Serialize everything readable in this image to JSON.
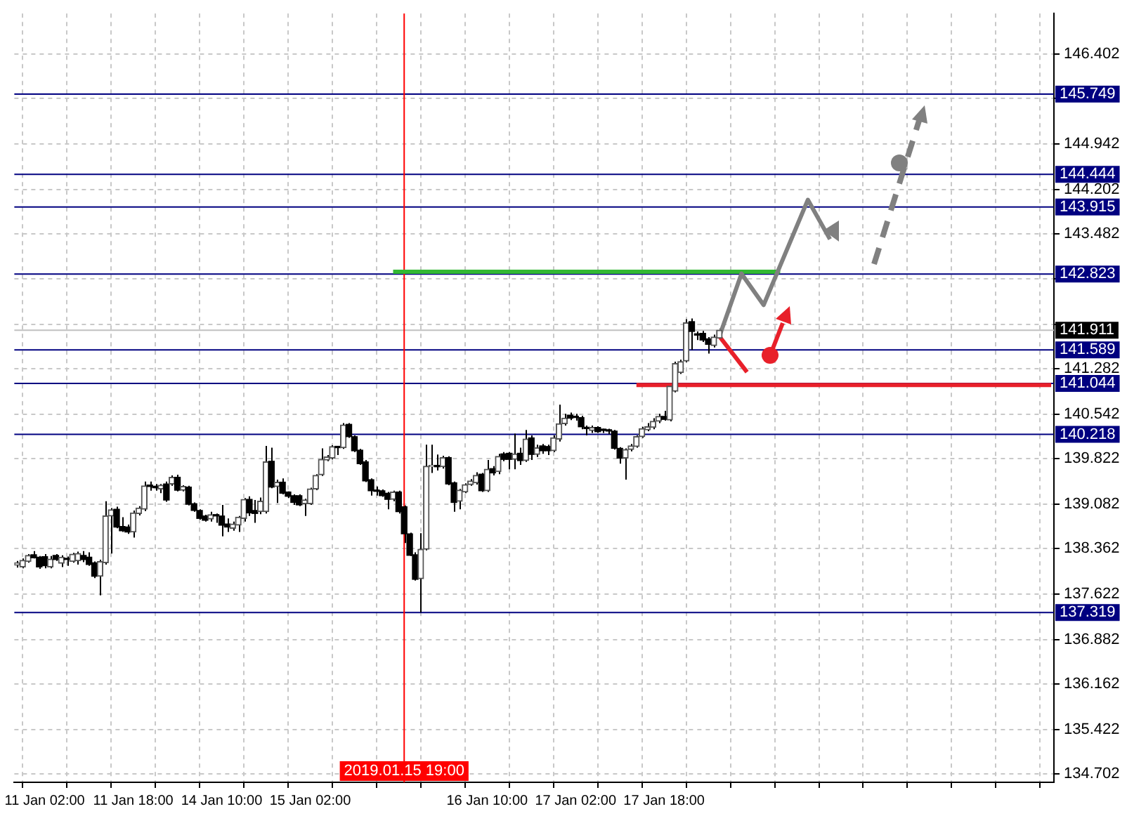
{
  "chart_data": {
    "type": "candlestick",
    "categories": [
      null,
      null,
      null,
      null,
      null,
      "11 Jan 02:00",
      null,
      null,
      null,
      null,
      null,
      null,
      null,
      null,
      null,
      null,
      null,
      null,
      null,
      null,
      null,
      "11 Jan 18:00",
      null,
      null,
      null,
      null,
      null,
      null,
      null,
      null,
      null,
      null,
      null,
      null,
      null,
      null,
      null,
      "14 Jan 10:00",
      null,
      null,
      null,
      null,
      null,
      null,
      null,
      null,
      null,
      null,
      null,
      null,
      null,
      null,
      null,
      "15 Jan 02:00",
      null,
      null,
      null,
      null,
      null,
      null,
      null,
      null,
      null,
      null,
      null,
      null,
      null,
      null,
      null,
      null,
      "2019.01.15 19:00",
      null,
      null,
      null,
      null,
      null,
      null,
      null,
      null,
      null,
      null,
      null,
      null,
      null,
      null,
      "16 Jan 10:00",
      null,
      null,
      null,
      null,
      null,
      null,
      null,
      null,
      null,
      null,
      null,
      null,
      null,
      null,
      null,
      "17 Jan 02:00",
      null,
      null,
      null,
      null,
      null,
      null,
      null,
      null,
      null,
      null,
      null,
      null,
      null,
      null,
      null,
      "17 Jan 18:00",
      null,
      null,
      null,
      null,
      null,
      null,
      null,
      null,
      null,
      null,
      null,
      null,
      null,
      null,
      null,
      null,
      null,
      null,
      null,
      null,
      null,
      null,
      null,
      null,
      null,
      null,
      null,
      null,
      null,
      null,
      null,
      null,
      null,
      null,
      null,
      null,
      null,
      null,
      null,
      null,
      null,
      null,
      null,
      null,
      null,
      null,
      null,
      null,
      null,
      null,
      null,
      null,
      null,
      null,
      null,
      null,
      null,
      null,
      null,
      null,
      null,
      null,
      null,
      null,
      null,
      null,
      null,
      null,
      null,
      null
    ],
    "ohlc": [
      [
        138.09,
        138.16,
        138.05,
        138.13
      ],
      [
        138.06,
        138.2,
        138.04,
        138.17
      ],
      [
        138.15,
        138.27,
        138.13,
        138.25
      ],
      [
        138.26,
        138.32,
        138.2,
        138.21
      ],
      [
        138.22,
        138.24,
        138.03,
        138.06
      ],
      [
        138.23,
        138.27,
        138.04,
        138.08
      ],
      [
        138.06,
        138.24,
        138.04,
        138.19
      ],
      [
        138.25,
        138.27,
        138.16,
        138.18
      ],
      [
        138.12,
        138.25,
        138.06,
        138.22
      ],
      [
        138.18,
        138.23,
        138.08,
        138.18
      ],
      [
        138.15,
        138.29,
        138.13,
        138.27
      ],
      [
        138.16,
        138.31,
        138.1,
        138.28
      ],
      [
        138.25,
        138.32,
        138.14,
        138.18
      ],
      [
        138.22,
        138.3,
        138.08,
        138.1
      ],
      [
        138.13,
        138.15,
        137.88,
        137.91
      ],
      [
        137.91,
        138.18,
        137.6,
        138.15
      ],
      [
        138.13,
        139.13,
        138.1,
        138.89
      ],
      [
        138.89,
        139.02,
        138.28,
        138.99
      ],
      [
        139.0,
        139.04,
        138.69,
        138.71
      ],
      [
        138.72,
        138.87,
        138.63,
        138.65
      ],
      [
        138.71,
        138.75,
        138.6,
        138.63
      ],
      [
        138.63,
        138.98,
        138.54,
        138.94
      ],
      [
        138.93,
        139.05,
        138.9,
        139.02
      ],
      [
        139.0,
        139.45,
        138.97,
        139.38
      ],
      [
        139.38,
        139.45,
        139.3,
        139.37
      ],
      [
        139.36,
        139.41,
        139.3,
        139.35
      ],
      [
        139.33,
        139.41,
        139.26,
        139.39
      ],
      [
        139.41,
        139.45,
        139.12,
        139.15
      ],
      [
        139.41,
        139.55,
        139.38,
        139.52
      ],
      [
        139.52,
        139.56,
        139.29,
        139.31
      ],
      [
        139.31,
        139.39,
        139.29,
        139.37
      ],
      [
        139.36,
        139.38,
        139.06,
        139.08
      ],
      [
        139.09,
        139.11,
        138.96,
        138.98
      ],
      [
        138.98,
        139.0,
        138.83,
        138.85
      ],
      [
        138.89,
        138.91,
        138.8,
        138.82
      ],
      [
        138.84,
        138.96,
        138.8,
        138.91
      ],
      [
        138.89,
        138.93,
        138.78,
        138.89
      ],
      [
        138.89,
        139.07,
        138.56,
        138.74
      ],
      [
        138.76,
        138.85,
        138.63,
        138.71
      ],
      [
        138.69,
        138.8,
        138.65,
        138.76
      ],
      [
        138.74,
        138.89,
        138.63,
        138.87
      ],
      [
        138.85,
        139.18,
        138.8,
        139.16
      ],
      [
        139.16,
        139.21,
        138.89,
        138.94
      ],
      [
        138.98,
        139.15,
        138.78,
        138.93
      ],
      [
        138.96,
        139.19,
        138.92,
        139.13
      ],
      [
        138.96,
        140.03,
        138.93,
        139.77
      ],
      [
        139.78,
        140.0,
        139.34,
        139.36
      ],
      [
        139.37,
        139.48,
        139.1,
        139.44
      ],
      [
        139.44,
        139.5,
        139.24,
        139.26
      ],
      [
        139.28,
        139.29,
        139.18,
        139.21
      ],
      [
        139.22,
        139.24,
        139.07,
        139.11
      ],
      [
        139.22,
        139.24,
        139.05,
        139.07
      ],
      [
        139.09,
        139.17,
        138.89,
        139.15
      ],
      [
        139.09,
        139.35,
        139.07,
        139.33
      ],
      [
        139.33,
        139.57,
        139.31,
        139.55
      ],
      [
        139.56,
        139.99,
        139.54,
        139.81
      ],
      [
        139.8,
        139.88,
        139.78,
        139.85
      ],
      [
        139.83,
        140.04,
        139.81,
        140.02
      ],
      [
        140.0,
        140.03,
        139.88,
        140.0
      ],
      [
        140.0,
        140.4,
        139.98,
        140.37
      ],
      [
        140.38,
        140.4,
        140.16,
        140.18
      ],
      [
        140.18,
        140.2,
        139.93,
        139.95
      ],
      [
        139.96,
        139.98,
        139.72,
        139.74
      ],
      [
        139.77,
        139.8,
        139.44,
        139.46
      ],
      [
        139.48,
        139.5,
        139.22,
        139.3
      ],
      [
        139.3,
        139.37,
        139.22,
        139.29
      ],
      [
        139.3,
        139.32,
        139.2,
        139.22
      ],
      [
        139.26,
        139.28,
        139.0,
        139.16
      ],
      [
        139.16,
        139.3,
        139.13,
        139.28
      ],
      [
        139.28,
        139.3,
        138.93,
        138.96
      ],
      [
        139.04,
        139.06,
        138.45,
        138.6
      ],
      [
        138.6,
        138.62,
        138.24,
        138.25
      ],
      [
        138.26,
        138.3,
        137.84,
        137.86
      ],
      [
        137.87,
        138.61,
        137.32,
        138.35
      ],
      [
        138.35,
        140.05,
        138.33,
        139.7
      ],
      [
        139.69,
        140.05,
        139.59,
        139.7
      ],
      [
        139.69,
        139.89,
        139.63,
        139.69
      ],
      [
        139.69,
        139.87,
        139.66,
        139.84
      ],
      [
        139.84,
        139.86,
        139.39,
        139.41
      ],
      [
        139.43,
        139.45,
        138.96,
        139.11
      ],
      [
        139.13,
        139.33,
        139.0,
        139.31
      ],
      [
        139.28,
        139.42,
        139.26,
        139.4
      ],
      [
        139.4,
        139.49,
        139.38,
        139.46
      ],
      [
        139.43,
        139.6,
        139.4,
        139.55
      ],
      [
        139.57,
        139.59,
        139.28,
        139.3
      ],
      [
        139.3,
        139.8,
        139.28,
        139.65
      ],
      [
        139.66,
        139.7,
        139.55,
        139.59
      ],
      [
        139.61,
        139.9,
        139.57,
        139.86
      ],
      [
        139.9,
        139.93,
        139.78,
        139.81
      ],
      [
        139.91,
        139.93,
        139.65,
        139.81
      ],
      [
        139.81,
        140.23,
        139.65,
        139.9
      ],
      [
        139.91,
        140.0,
        139.72,
        139.79
      ],
      [
        139.79,
        140.29,
        139.77,
        140.14
      ],
      [
        140.16,
        140.2,
        139.8,
        139.89
      ],
      [
        139.89,
        140.05,
        139.85,
        140.0
      ],
      [
        140.03,
        140.06,
        139.9,
        139.95
      ],
      [
        140.02,
        140.05,
        139.88,
        139.95
      ],
      [
        139.95,
        140.2,
        139.93,
        140.16
      ],
      [
        140.14,
        140.7,
        140.1,
        140.39
      ],
      [
        140.39,
        140.55,
        140.36,
        140.48
      ],
      [
        140.53,
        140.57,
        140.45,
        140.48
      ],
      [
        140.49,
        140.55,
        140.44,
        140.49
      ],
      [
        140.49,
        140.52,
        140.3,
        140.34
      ],
      [
        140.31,
        140.36,
        140.2,
        140.31
      ],
      [
        140.28,
        140.36,
        140.24,
        140.33
      ],
      [
        140.33,
        140.35,
        140.24,
        140.26
      ],
      [
        140.28,
        140.31,
        140.24,
        140.28
      ],
      [
        140.28,
        140.31,
        140.22,
        140.27
      ],
      [
        140.27,
        140.29,
        139.97,
        139.99
      ],
      [
        139.99,
        140.01,
        139.74,
        139.83
      ],
      [
        139.83,
        139.99,
        139.48,
        139.97
      ],
      [
        139.97,
        140.06,
        139.94,
        140.03
      ],
      [
        140.02,
        140.2,
        140.0,
        140.18
      ],
      [
        140.18,
        140.34,
        140.16,
        140.31
      ],
      [
        140.29,
        140.4,
        140.27,
        140.34
      ],
      [
        140.33,
        140.48,
        140.3,
        140.43
      ],
      [
        140.43,
        140.55,
        140.4,
        140.51
      ],
      [
        140.51,
        140.6,
        140.44,
        140.46
      ],
      [
        140.45,
        141.05,
        140.43,
        141.0
      ],
      [
        140.92,
        141.4,
        140.9,
        141.37
      ],
      [
        141.22,
        141.43,
        141.2,
        141.4
      ],
      [
        141.41,
        142.09,
        141.39,
        142.03
      ],
      [
        142.05,
        142.1,
        141.59,
        141.89
      ],
      [
        141.83,
        141.89,
        141.75,
        141.83
      ],
      [
        141.86,
        141.9,
        141.72,
        141.75
      ],
      [
        141.77,
        141.8,
        141.53,
        141.68
      ],
      [
        141.66,
        141.84,
        141.63,
        141.8
      ],
      [
        141.78,
        141.94,
        141.76,
        141.911
      ],
      null,
      null,
      null,
      null,
      null,
      null,
      null,
      null,
      null,
      null,
      null,
      null,
      null,
      null,
      null,
      null,
      null,
      null,
      null,
      null,
      null,
      null,
      null,
      null,
      null,
      null,
      null,
      null,
      null,
      null,
      null,
      null,
      null,
      null,
      null,
      null,
      null,
      null,
      null,
      null,
      null,
      null,
      null,
      null,
      null,
      null,
      null,
      null,
      null,
      null,
      null,
      null,
      null,
      null,
      null,
      null,
      null,
      null,
      null,
      null
    ],
    "series": [
      {
        "type": "line",
        "color": "#808080",
        "values": [
          null,
          null,
          null,
          null,
          null,
          null,
          null,
          null,
          null,
          null,
          null,
          null,
          null,
          null,
          null,
          null,
          null,
          null,
          null,
          null,
          null,
          null,
          null,
          null,
          null,
          null,
          null,
          null,
          null,
          null,
          null,
          null,
          null,
          null,
          null,
          null,
          null,
          null,
          null,
          null,
          null,
          null,
          null,
          null,
          null,
          null,
          null,
          null,
          null,
          null,
          null,
          null,
          null,
          null,
          null,
          null,
          null,
          null,
          null,
          null,
          null,
          null,
          null,
          null,
          null,
          null,
          null,
          null,
          null,
          null,
          null,
          null,
          null,
          null,
          null,
          null,
          null,
          null,
          null,
          null,
          null,
          null,
          null,
          null,
          null,
          null,
          null,
          null,
          null,
          null,
          null,
          null,
          null,
          null,
          null,
          null,
          null,
          null,
          null,
          null,
          null,
          null,
          null,
          null,
          null,
          null,
          null,
          null,
          null,
          null,
          null,
          null,
          null,
          null,
          null,
          null,
          null,
          null,
          null,
          null,
          null,
          null,
          null,
          null,
          null,
          null,
          null,
          141.81,
          null,
          null,
          null,
          142.83,
          null,
          null,
          null,
          142.32,
          null,
          null,
          null,
          null,
          null,
          null,
          null,
          144.03,
          null,
          null,
          null,
          143.39,
          null,
          null,
          null,
          null,
          null,
          null,
          null,
          null,
          null,
          null,
          null,
          null,
          null,
          null,
          null,
          null,
          null,
          null,
          null,
          null,
          null,
          null,
          null,
          null,
          null,
          null,
          null,
          null,
          null,
          null,
          null,
          null,
          null,
          null,
          null,
          null,
          null,
          null,
          null,
          null
        ]
      },
      {
        "type": "line",
        "color": "#e8202a",
        "values": [
          null,
          null,
          null,
          null,
          null,
          null,
          null,
          null,
          null,
          null,
          null,
          null,
          null,
          null,
          null,
          null,
          null,
          null,
          null,
          null,
          null,
          null,
          null,
          null,
          null,
          null,
          null,
          null,
          null,
          null,
          null,
          null,
          null,
          null,
          null,
          null,
          null,
          null,
          null,
          null,
          null,
          null,
          null,
          null,
          null,
          null,
          null,
          null,
          null,
          null,
          null,
          null,
          null,
          null,
          null,
          null,
          null,
          null,
          null,
          null,
          null,
          null,
          null,
          null,
          null,
          null,
          null,
          null,
          null,
          null,
          null,
          null,
          null,
          null,
          null,
          null,
          null,
          null,
          null,
          null,
          null,
          null,
          null,
          null,
          null,
          null,
          null,
          null,
          null,
          null,
          null,
          null,
          null,
          null,
          null,
          null,
          null,
          null,
          null,
          null,
          null,
          null,
          null,
          null,
          null,
          null,
          null,
          null,
          null,
          null,
          null,
          null,
          null,
          null,
          null,
          null,
          null,
          null,
          null,
          null,
          null,
          null,
          null,
          null,
          null,
          null,
          null,
          141.81,
          null,
          null,
          null,
          null,
          141.23,
          null,
          null,
          null,
          null,
          null,
          null,
          null,
          null,
          null,
          null,
          null,
          null,
          null,
          null,
          null,
          null,
          null,
          null,
          null,
          null,
          null,
          null,
          null,
          null,
          null,
          null,
          null,
          null,
          null,
          null,
          null,
          null,
          null,
          null,
          null,
          null,
          null,
          null,
          null,
          null,
          null,
          null,
          null,
          null,
          null,
          null,
          null,
          null,
          null,
          null,
          null,
          null,
          null,
          null,
          null
        ]
      },
      {
        "type": "line",
        "color": "#33b833",
        "values": [
          null,
          null,
          null,
          null,
          null,
          null,
          null,
          null,
          null,
          null,
          null,
          null,
          null,
          null,
          null,
          null,
          null,
          null,
          null,
          null,
          null,
          null,
          null,
          null,
          null,
          null,
          null,
          null,
          null,
          null,
          null,
          null,
          null,
          null,
          null,
          null,
          null,
          null,
          null,
          null,
          null,
          null,
          null,
          null,
          null,
          null,
          null,
          null,
          null,
          null,
          null,
          null,
          null,
          null,
          null,
          null,
          null,
          null,
          null,
          null,
          null,
          null,
          null,
          null,
          null,
          null,
          null,
          null,
          142.86,
          142.86,
          142.86,
          142.86,
          142.86,
          142.86,
          142.86,
          142.86,
          142.86,
          142.86,
          142.86,
          142.86,
          142.86,
          142.86,
          142.86,
          142.86,
          142.86,
          142.86,
          142.86,
          142.86,
          142.86,
          142.86,
          142.86,
          142.86,
          142.86,
          142.86,
          142.86,
          142.86,
          142.86,
          142.86,
          142.86,
          142.86,
          142.86,
          142.86,
          142.86,
          142.86,
          142.86,
          142.86,
          142.86,
          142.86,
          142.86,
          142.86,
          142.86,
          142.86,
          142.86,
          142.86,
          142.86,
          142.86,
          142.86,
          142.86,
          142.86,
          142.86,
          142.86,
          142.86,
          142.86,
          142.86,
          142.86,
          142.86,
          142.86,
          142.86,
          142.86,
          142.86,
          142.86,
          142.86,
          142.86,
          142.86,
          142.86,
          142.86,
          142.86,
          142.86,
          142.86,
          null,
          null,
          null,
          null,
          null,
          null,
          null,
          null,
          null,
          null,
          null,
          null,
          null,
          null,
          null,
          null,
          null,
          null,
          null,
          null,
          null,
          null,
          null,
          null,
          null,
          null,
          null,
          null,
          null,
          null,
          null,
          null,
          null,
          null,
          null,
          null,
          null,
          null,
          null,
          null,
          null,
          null,
          null,
          null,
          null,
          null,
          null,
          null,
          null
        ]
      },
      {
        "type": "line",
        "color": "#e8202a",
        "values": [
          null,
          null,
          null,
          null,
          null,
          null,
          null,
          null,
          null,
          null,
          null,
          null,
          null,
          null,
          null,
          null,
          null,
          null,
          null,
          null,
          null,
          null,
          null,
          null,
          null,
          null,
          null,
          null,
          null,
          null,
          null,
          null,
          null,
          null,
          null,
          null,
          null,
          null,
          null,
          null,
          null,
          null,
          null,
          null,
          null,
          null,
          null,
          null,
          null,
          null,
          null,
          null,
          null,
          null,
          null,
          null,
          null,
          null,
          null,
          null,
          null,
          null,
          null,
          null,
          null,
          null,
          null,
          null,
          null,
          null,
          null,
          null,
          null,
          null,
          null,
          null,
          null,
          null,
          null,
          null,
          null,
          null,
          null,
          null,
          null,
          null,
          null,
          null,
          null,
          null,
          null,
          null,
          null,
          null,
          null,
          null,
          null,
          null,
          null,
          null,
          null,
          null,
          null,
          null,
          null,
          null,
          null,
          null,
          null,
          null,
          null,
          null,
          141.02,
          141.02,
          141.02,
          141.02,
          141.02,
          141.02,
          141.02,
          141.02,
          141.02,
          141.02,
          141.02,
          141.02,
          141.02,
          141.02,
          141.02,
          141.02,
          141.02,
          141.02,
          141.02,
          141.02,
          141.02,
          141.02,
          141.02,
          141.02,
          141.02,
          141.02,
          141.02,
          141.02,
          141.02,
          141.02,
          141.02,
          141.02,
          141.02,
          141.02,
          141.02,
          141.02,
          141.02,
          141.02,
          141.02,
          141.02,
          141.02,
          141.02,
          141.02,
          141.02,
          141.02,
          141.02,
          141.02,
          141.02,
          141.02,
          141.02,
          141.02,
          141.02,
          141.02,
          141.02,
          141.02,
          141.02,
          141.02,
          141.02,
          141.02,
          141.02,
          141.02,
          141.02,
          141.02,
          141.02,
          141.02,
          141.02,
          141.02,
          141.02,
          141.02,
          141.02,
          141.02,
          141.02,
          141.02,
          141.02,
          141.02,
          141.02
        ]
      }
    ],
    "ylim": [
      134.56,
      147.06
    ],
    "yticks": [
      146.402,
      {
        "value": 145.682,
        "label": null
      },
      144.942,
      144.202,
      143.482,
      {
        "value": 142.742,
        "label": null
      },
      {
        "value": 142.002,
        "label": null
      },
      141.282,
      140.542,
      139.822,
      139.082,
      138.362,
      137.622,
      136.882,
      136.162,
      135.422,
      134.702
    ],
    "grid": true,
    "ref_lines": [
      {
        "axis": "y",
        "value": 145.749,
        "label": "145.749",
        "color": "#000080"
      },
      {
        "axis": "y",
        "value": 144.444,
        "label": "144.444",
        "color": "#000080"
      },
      {
        "axis": "y",
        "value": 143.915,
        "label": "143.915",
        "color": "#000080"
      },
      {
        "axis": "y",
        "value": 142.823,
        "label": "142.823",
        "color": "#000080"
      },
      {
        "axis": "y",
        "value": 141.911,
        "label": "141.911",
        "color": "#c0c0c0"
      },
      {
        "axis": "y",
        "value": 141.589,
        "label": "141.589",
        "color": "#000080"
      },
      {
        "axis": "y",
        "value": 141.044,
        "label": "141.044",
        "color": "#000080"
      },
      {
        "axis": "y",
        "value": 140.218,
        "label": "140.218",
        "color": "#000080"
      },
      {
        "axis": "y",
        "value": 137.319,
        "label": "137.319",
        "color": "#000080"
      },
      {
        "axis": "x",
        "value": "2019.01.15 19:00",
        "label": "2019.01.15 19:00",
        "color": "#ff0000"
      }
    ]
  }
}
